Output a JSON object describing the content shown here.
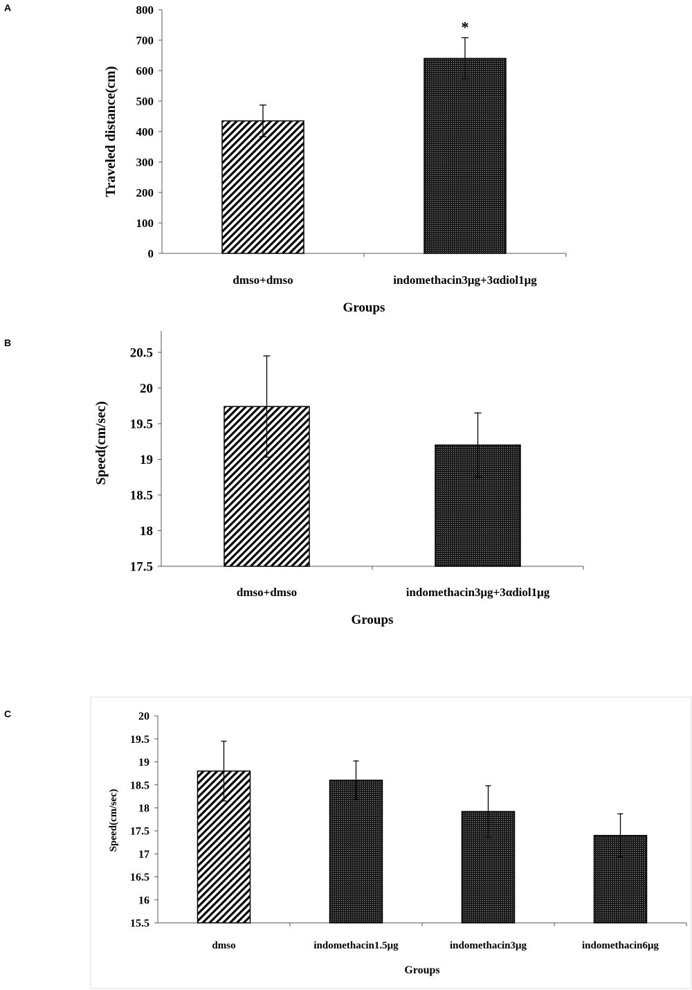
{
  "chart_data": [
    {
      "panel": "A",
      "type": "bar",
      "categories": [
        "dmso+dmso",
        "indomethacin3μg+3αdiol1μg"
      ],
      "values": [
        435,
        640
      ],
      "errors": [
        52,
        68
      ],
      "annotations": [
        "",
        "*"
      ],
      "xlabel": "Groups",
      "ylabel": "Traveled distance(cm)",
      "ylim": [
        0,
        800
      ],
      "yticks": [
        0,
        100,
        200,
        300,
        400,
        500,
        600,
        700,
        800
      ],
      "ytick_labels": [
        "0",
        "100",
        "200",
        "300",
        "400",
        "500",
        "600",
        "700",
        "800"
      ],
      "patterns": [
        "hatch",
        "crosshatch"
      ],
      "grid": false
    },
    {
      "panel": "B",
      "type": "bar",
      "categories": [
        "dmso+dmso",
        "indomethacin3μg+3αdiol1μg"
      ],
      "values": [
        19.74,
        19.2
      ],
      "errors": [
        0.71,
        0.45
      ],
      "xlabel": "Groups",
      "ylabel": "Speed(cm/sec)",
      "ylim": [
        17.5,
        20.8
      ],
      "yticks": [
        17.5,
        18,
        18.5,
        19,
        19.5,
        20,
        20.5
      ],
      "ytick_labels": [
        "17.5",
        "18",
        "18.5",
        "19",
        "19.5",
        "20",
        "20.5"
      ],
      "patterns": [
        "hatch",
        "crosshatch"
      ],
      "grid": false
    },
    {
      "panel": "C",
      "type": "bar",
      "categories": [
        "dmso",
        "indomethacin1.5μg",
        "indomethacin3μg",
        "indomethacin6μg"
      ],
      "values": [
        18.8,
        18.6,
        17.92,
        17.4
      ],
      "errors": [
        0.65,
        0.42,
        0.56,
        0.47
      ],
      "xlabel": "Groups",
      "ylabel": "Speed(cm/sec)",
      "ylim": [
        15.5,
        20
      ],
      "yticks": [
        15.5,
        16,
        16.5,
        17,
        17.5,
        18,
        18.5,
        19,
        19.5,
        20
      ],
      "ytick_labels": [
        "15.5",
        "16",
        "16.5",
        "17",
        "17.5",
        "18",
        "18.5",
        "19",
        "19.5",
        "20"
      ],
      "patterns": [
        "hatch",
        "crosshatch",
        "crosshatch",
        "crosshatch"
      ],
      "grid": false
    }
  ],
  "colors": {
    "axis": "#555555",
    "bar_fill": "#ffffff",
    "bar_stroke": "#000000",
    "crosshatch": "#222222"
  }
}
